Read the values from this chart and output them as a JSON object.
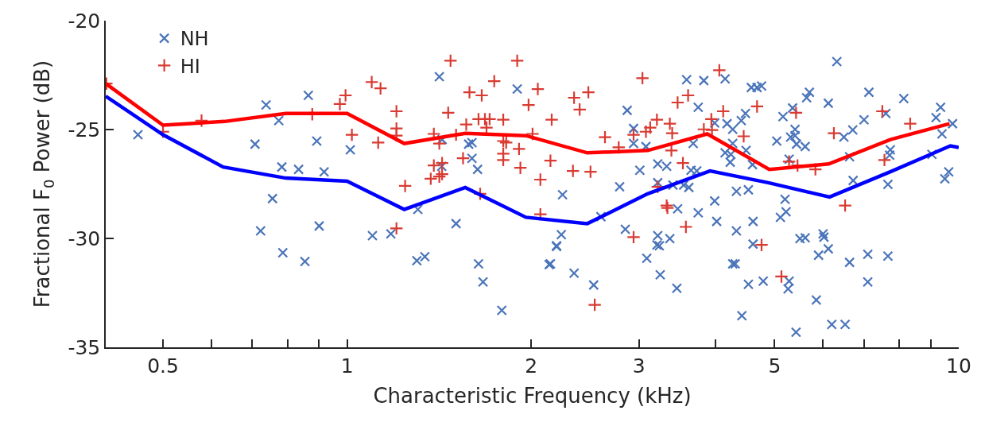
{
  "chart_data": {
    "type": "scatter",
    "xlabel": "Characteristic Frequency (kHz)",
    "ylabel": "Fractional F$_{0}$ Power (dB)",
    "log": "x",
    "grid": false,
    "legend": "top left",
    "xlim": [
      0.403,
      10
    ],
    "xticks": [
      0.5,
      {
        "value": 0.6,
        "label": null
      },
      {
        "value": 0.7,
        "label": null
      },
      {
        "value": 0.8,
        "label": null
      },
      {
        "value": 0.9,
        "label": null
      },
      1,
      2,
      3,
      {
        "value": 4,
        "label": null
      },
      5,
      {
        "value": 6,
        "label": null
      },
      {
        "value": 7,
        "label": null
      },
      {
        "value": 8,
        "label": null
      },
      {
        "value": 9,
        "label": null
      },
      10
    ],
    "ylim": [
      -35,
      -20
    ],
    "yticks": [
      -35,
      -30,
      -25,
      -20
    ],
    "series": [
      {
        "name": "NH",
        "marker": "x",
        "color": "#4a74b9",
        "x": [
          0.455,
          0.737,
          0.773,
          0.707,
          0.782,
          0.833,
          0.917,
          0.864,
          0.892,
          0.755,
          0.722,
          0.9,
          0.785,
          0.853,
          1.012,
          1.415,
          1.897,
          1.1,
          1.179,
          1.305,
          1.3,
          1.34,
          1.507,
          1.58,
          1.6,
          1.6,
          1.634,
          1.428,
          1.43,
          1.64,
          1.668,
          1.79,
          2.2,
          2.14,
          2.87,
          2.94,
          2.94,
          3.08,
          3.01,
          2.79,
          2.25,
          2.6,
          2.24,
          2.2,
          2.15,
          2.35,
          2.53,
          2.85,
          3.22,
          3.24,
          3.21,
          3.37,
          3.09,
          3.25,
          3.46,
          3.22,
          3.33,
          3.22,
          3.41,
          3.55,
          3.62,
          3.47,
          3.75,
          3.65,
          3.73,
          3.68,
          3.59,
          3.83,
          4.15,
          3.75,
          3.99,
          3.99,
          4.02,
          4.18,
          4.27,
          4.41,
          4.48,
          4.15,
          4.24,
          4.23,
          4.27,
          4.49,
          4.6,
          4.33,
          4.53,
          4.61,
          4.33,
          4.61,
          4.27,
          4.31,
          4.53,
          4.42,
          4.58,
          4.68,
          4.76,
          6.32,
          7.13,
          8.13,
          9.34,
          9.18,
          9.39,
          9.77,
          5.7,
          5.64,
          6.12,
          5.16,
          5.35,
          5.4,
          5.31,
          5.4,
          5.43,
          5.61,
          5.04,
          6.49,
          6.71,
          7.0,
          7.6,
          7.73,
          7.71,
          6.63,
          6.72,
          7.66,
          9.04,
          9.63,
          9.49,
          5.28,
          5.2,
          5.22,
          5.11,
          5.5,
          5.61,
          6.0,
          6.02,
          6.12,
          5.9,
          6.63,
          7.1,
          7.66,
          7.1,
          5.28,
          5.26,
          4.79,
          5.85,
          6.2,
          6.52,
          5.42
        ],
        "values": [
          -25.24,
          -23.87,
          -24.59,
          -25.67,
          -26.72,
          -26.83,
          -26.94,
          -23.43,
          -25.53,
          -28.17,
          -29.65,
          -29.43,
          -30.66,
          -31.06,
          -25.93,
          -22.57,
          -23.14,
          -29.87,
          -29.79,
          -28.67,
          -31.02,
          -30.84,
          -29.32,
          -25.67,
          -25.6,
          -26.32,
          -26.83,
          -26.69,
          -25.46,
          -31.17,
          -32.0,
          -33.3,
          -30.34,
          -31.2,
          -24.12,
          -24.95,
          -25.64,
          -25.78,
          -26.87,
          -27.63,
          -27.99,
          -29.0,
          -29.83,
          -30.37,
          -31.17,
          -31.6,
          -32.14,
          -29.58,
          -29.87,
          -30.34,
          -30.3,
          -30.01,
          -30.91,
          -31.67,
          -32.29,
          -26.58,
          -26.69,
          -27.44,
          -27.55,
          -27.55,
          -27.66,
          -28.64,
          -28.82,
          -26.87,
          -26.9,
          -25.64,
          -22.71,
          -22.75,
          -22.67,
          -23.98,
          -24.7,
          -28.28,
          -29.22,
          -24.73,
          -24.99,
          -24.59,
          -24.26,
          -26.07,
          -26.14,
          -26.5,
          -25.64,
          -25.96,
          -26.61,
          -27.84,
          -27.77,
          -29.22,
          -29.65,
          -30.26,
          -31.17,
          -31.17,
          -32.11,
          -33.55,
          -23.07,
          -23.07,
          -23.0,
          -21.88,
          -23.29,
          -23.58,
          -23.98,
          -24.45,
          -25.2,
          -24.73,
          -23.29,
          -23.54,
          -23.79,
          -24.41,
          -24.01,
          -24.99,
          -25.35,
          -25.28,
          -25.67,
          -25.78,
          -25.53,
          -25.35,
          -25.02,
          -24.55,
          -24.26,
          -25.93,
          -26.18,
          -26.25,
          -27.34,
          -27.52,
          -26.14,
          -26.94,
          -27.26,
          -26.36,
          -28.2,
          -28.78,
          -29.03,
          -30.01,
          -29.97,
          -29.79,
          -29.94,
          -30.48,
          -30.77,
          -31.1,
          -30.73,
          -30.81,
          -32.0,
          -31.96,
          -32.32,
          -31.96,
          -32.83,
          -33.95,
          -33.95,
          -34.31
        ]
      },
      {
        "name": "HI",
        "marker": "cross",
        "color": "#d93a31",
        "x": [
          0.404,
          0.5,
          0.578,
          0.877,
          0.973,
          0.994,
          1.018,
          1.097,
          1.134,
          1.204,
          1.204,
          1.124,
          1.204,
          1.244,
          1.204,
          1.386,
          1.415,
          1.507,
          1.463,
          1.476,
          1.386,
          1.43,
          1.37,
          1.415,
          1.43,
          1.547,
          1.566,
          1.585,
          1.66,
          1.74,
          1.64,
          1.68,
          1.71,
          1.69,
          1.8,
          1.897,
          1.8,
          1.82,
          1.8,
          1.8,
          1.91,
          1.92,
          1.65,
          1.98,
          2.05,
          2.01,
          2.07,
          2.07,
          2.16,
          2.15,
          2.35,
          2.48,
          2.4,
          2.34,
          2.5,
          2.64,
          2.78,
          3.04,
          2.94,
          3.08,
          3.13,
          3.21,
          3.37,
          3.4,
          3.39,
          3.47,
          3.61,
          3.54,
          3.22,
          3.33,
          3.34,
          3.58,
          2.94,
          2.54,
          4.06,
          3.94,
          4.12,
          3.83,
          3.95,
          4.45,
          4.68,
          4.76,
          5.42,
          5.28,
          5.45,
          5.83,
          6.25,
          6.52,
          7.5,
          8.33,
          7.56,
          5.13
        ],
        "values": [
          -22.89,
          -25.1,
          -24.59,
          -24.3,
          -23.83,
          -23.43,
          -25.24,
          -22.82,
          -23.11,
          -24.16,
          -24.95,
          -25.6,
          -25.28,
          -27.59,
          -29.54,
          -25.2,
          -25.64,
          -25.24,
          -24.23,
          -21.84,
          -26.65,
          -26.54,
          -27.26,
          -27.16,
          -27.05,
          -26.32,
          -24.77,
          -23.29,
          -23.43,
          -22.78,
          -24.52,
          -24.52,
          -24.52,
          -24.91,
          -24.55,
          -21.84,
          -25.53,
          -25.6,
          -26.11,
          -26.4,
          -25.89,
          -26.76,
          -27.95,
          -23.87,
          -23.14,
          -25.2,
          -27.3,
          -28.89,
          -24.55,
          -26.43,
          -23.54,
          -23.29,
          -24.08,
          -26.9,
          -26.94,
          -25.35,
          -25.82,
          -22.64,
          -25.24,
          -25.1,
          -24.91,
          -24.55,
          -24.73,
          -25.17,
          -25.96,
          -23.76,
          -23.43,
          -26.54,
          -27.63,
          -28.49,
          -28.6,
          -29.47,
          -29.94,
          -33.05,
          -22.28,
          -24.52,
          -24.16,
          -24.99,
          -25.02,
          -25.31,
          -23.94,
          -30.3,
          -24.23,
          -26.47,
          -26.65,
          -26.83,
          -25.17,
          -28.49,
          -24.16,
          -24.73,
          -26.4,
          -31.75
        ]
      },
      {
        "type": "line",
        "marker": "none",
        "line_style": "solid",
        "color": "#0000ff",
        "x": [
          0.403,
          0.5,
          0.627,
          0.794,
          1,
          1.24,
          1.56,
          1.96,
          2.47,
          3.1,
          3.92,
          4.88,
          6.15,
          7.73,
          9.69,
          10
        ],
        "values": [
          -23.47,
          -25.24,
          -26.72,
          -27.23,
          -27.37,
          -28.67,
          -27.66,
          -29.03,
          -29.32,
          -27.95,
          -26.9,
          -27.44,
          -28.1,
          -26.94,
          -25.75,
          -25.82
        ]
      },
      {
        "type": "line",
        "marker": "none",
        "line_style": "solid",
        "color": "#ff0000",
        "x": [
          0.403,
          0.5,
          0.63,
          0.794,
          1,
          1.24,
          1.56,
          1.96,
          2.47,
          3.1,
          3.88,
          4.9,
          6.13,
          7.73,
          9.66
        ],
        "values": [
          -22.89,
          -24.8,
          -24.63,
          -24.26,
          -24.26,
          -25.64,
          -25.17,
          -25.28,
          -26.07,
          -25.96,
          -25.2,
          -26.83,
          -26.58,
          -25.46,
          -24.73
        ]
      }
    ]
  }
}
